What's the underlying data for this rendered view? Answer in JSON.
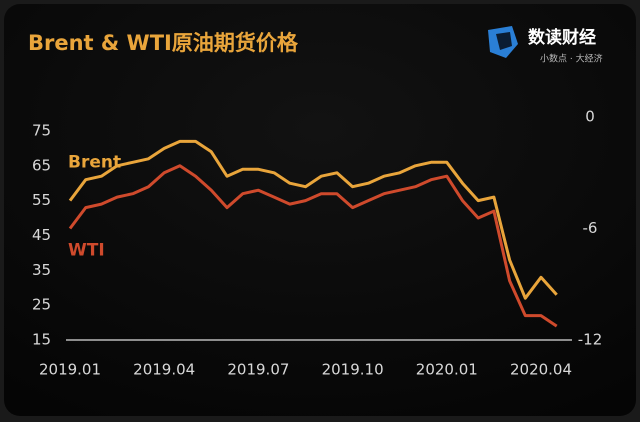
{
  "chart_data": {
    "type": "line",
    "title": "Brent & WTI原油期货价格",
    "categories": [
      "2019.01",
      null,
      null,
      null,
      null,
      null,
      "2019.04",
      null,
      null,
      null,
      null,
      null,
      "2019.07",
      null,
      null,
      null,
      null,
      null,
      "2019.10",
      null,
      null,
      null,
      null,
      null,
      "2020.01",
      null,
      null,
      null,
      null,
      null,
      "2020.04",
      null
    ],
    "series": [
      {
        "name": "Brent",
        "color": "#e9a53b",
        "values": [
          55,
          61,
          62,
          65,
          66,
          67,
          70,
          72,
          72,
          69,
          62,
          64,
          64,
          63,
          60,
          59,
          62,
          63,
          59,
          60,
          62,
          63,
          65,
          66,
          66,
          60,
          55,
          56,
          38,
          27,
          33,
          28
        ]
      },
      {
        "name": "WTI",
        "color": "#cf4a2c",
        "values": [
          47,
          53,
          54,
          56,
          57,
          59,
          63,
          65,
          62,
          58,
          53,
          57,
          58,
          56,
          54,
          55,
          57,
          57,
          53,
          55,
          57,
          58,
          59,
          61,
          62,
          55,
          50,
          52,
          32,
          22,
          22,
          19
        ]
      }
    ],
    "ylim": [
      15,
      79
    ],
    "yticks": [
      15,
      25,
      35,
      45,
      55,
      65,
      75
    ],
    "y2lim": [
      -12,
      0
    ],
    "y2ticks": [
      -12,
      -6,
      0
    ]
  },
  "logo": {
    "name": "数读财经",
    "tagline": "小数点 · 大经济"
  }
}
